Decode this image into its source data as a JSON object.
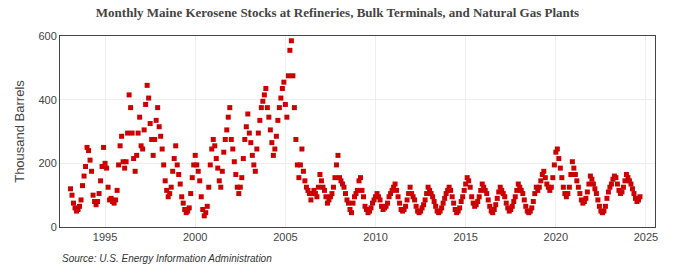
{
  "chart_data": {
    "type": "scatter",
    "title": "Monthly Maine Kerosene Stocks at Refineries, Bulk Terminals, and Natural Gas Plants",
    "ylabel": "Thousand Barrels",
    "annotations": [
      "Source: U.S. Energy Information Administration"
    ],
    "color": "#CC0000",
    "marker": "square",
    "grid": true,
    "xlim": [
      1992.5,
      2025.5
    ],
    "xticks": [
      1995,
      2000,
      2005,
      2010,
      2015,
      2020,
      2025
    ],
    "ylim": [
      0,
      600
    ],
    "yticks": [
      0,
      200,
      400,
      600
    ],
    "x": [
      1993.0833,
      1993.1667,
      1993.25,
      1993.3333,
      1993.4167,
      1993.5,
      1993.5833,
      1993.6667,
      1993.75,
      1993.8333,
      1993.9167,
      1993.9999,
      1994.0833,
      1994.1667,
      1994.25,
      1994.3333,
      1994.4167,
      1994.5,
      1994.5833,
      1994.6667,
      1994.75,
      1994.8333,
      1994.9167,
      1994.9999,
      1995.0833,
      1995.1667,
      1995.25,
      1995.3333,
      1995.4167,
      1995.5,
      1995.5833,
      1995.6667,
      1995.75,
      1995.8333,
      1995.9167,
      1995.9999,
      1996.0833,
      1996.1667,
      1996.25,
      1996.3333,
      1996.4167,
      1996.5,
      1996.5833,
      1996.6667,
      1996.75,
      1996.8333,
      1996.9167,
      1996.9999,
      1997.0833,
      1997.1667,
      1997.25,
      1997.3333,
      1997.4167,
      1997.5,
      1997.5833,
      1997.6667,
      1997.75,
      1997.8333,
      1997.9167,
      1997.9999,
      1998.0833,
      1998.1667,
      1998.25,
      1998.3333,
      1998.4167,
      1998.5,
      1998.5833,
      1998.6667,
      1998.75,
      1998.8333,
      1998.9167,
      1998.9999,
      1999.0833,
      1999.1667,
      1999.25,
      1999.3333,
      1999.4167,
      1999.5,
      1999.5833,
      1999.6667,
      1999.75,
      1999.8333,
      1999.9167,
      1999.9999,
      2000.0833,
      2000.1667,
      2000.25,
      2000.3333,
      2000.4167,
      2000.5,
      2000.5833,
      2000.6667,
      2000.75,
      2000.8333,
      2000.9167,
      2000.9999,
      2001.0833,
      2001.1667,
      2001.25,
      2001.3333,
      2001.4167,
      2001.5,
      2001.5833,
      2001.6667,
      2001.75,
      2001.8333,
      2001.9167,
      2001.9999,
      2002.0833,
      2002.1667,
      2002.25,
      2002.3333,
      2002.4167,
      2002.5,
      2002.5833,
      2002.6667,
      2002.75,
      2002.8333,
      2002.9167,
      2002.9999,
      2003.0833,
      2003.1667,
      2003.25,
      2003.3333,
      2003.4167,
      2003.5,
      2003.5833,
      2003.6667,
      2003.75,
      2003.8333,
      2003.9167,
      2003.9999,
      2004.0833,
      2004.1667,
      2004.25,
      2004.3333,
      2004.4167,
      2004.5,
      2004.5833,
      2004.6667,
      2004.75,
      2004.8333,
      2004.9167,
      2004.9999,
      2005.0833,
      2005.1667,
      2005.25,
      2005.3333,
      2005.4167,
      2005.5,
      2005.5833,
      2005.6667,
      2005.75,
      2005.8333,
      2005.9167,
      2005.9999,
      2006.0833,
      2006.1667,
      2006.25,
      2006.3333,
      2006.4167,
      2006.5,
      2006.5833,
      2006.6667,
      2006.75,
      2006.8333,
      2006.9167,
      2006.9999,
      2007.0833,
      2007.1667,
      2007.25,
      2007.3333,
      2007.4167,
      2007.5,
      2007.5833,
      2007.6667,
      2007.75,
      2007.8333,
      2007.9167,
      2007.9999,
      2008.0833,
      2008.1667,
      2008.25,
      2008.3333,
      2008.4167,
      2008.5,
      2008.5833,
      2008.6667,
      2008.75,
      2008.8333,
      2008.9167,
      2008.9999,
      2009.0833,
      2009.1667,
      2009.25,
      2009.3333,
      2009.4167,
      2009.5,
      2009.5833,
      2009.6667,
      2009.75,
      2009.8333,
      2009.9167,
      2009.9999,
      2010.0833,
      2010.1667,
      2010.25,
      2010.3333,
      2010.4167,
      2010.5,
      2010.5833,
      2010.6667,
      2010.75,
      2010.8333,
      2010.9167,
      2010.9999,
      2011.0833,
      2011.1667,
      2011.25,
      2011.3333,
      2011.4167,
      2011.5,
      2011.5833,
      2011.6667,
      2011.75,
      2011.8333,
      2011.9167,
      2011.9999,
      2012.0833,
      2012.1667,
      2012.25,
      2012.3333,
      2012.4167,
      2012.5,
      2012.5833,
      2012.6667,
      2012.75,
      2012.8333,
      2012.9167,
      2012.9999,
      2013.0833,
      2013.1667,
      2013.25,
      2013.3333,
      2013.4167,
      2013.5,
      2013.5833,
      2013.6667,
      2013.75,
      2013.8333,
      2013.9167,
      2013.9999,
      2014.0833,
      2014.1667,
      2014.25,
      2014.3333,
      2014.4167,
      2014.5,
      2014.5833,
      2014.6667,
      2014.75,
      2014.8333,
      2014.9167,
      2014.9999,
      2015.0833,
      2015.1667,
      2015.25,
      2015.3333,
      2015.4167,
      2015.5,
      2015.5833,
      2015.6667,
      2015.75,
      2015.8333,
      2015.9167,
      2015.9999,
      2016.0833,
      2016.1667,
      2016.25,
      2016.3333,
      2016.4167,
      2016.5,
      2016.5833,
      2016.6667,
      2016.75,
      2016.8333,
      2016.9167,
      2016.9999,
      2017.0833,
      2017.1667,
      2017.25,
      2017.3333,
      2017.4167,
      2017.5,
      2017.5833,
      2017.6667,
      2017.75,
      2017.8333,
      2017.9167,
      2017.9999,
      2018.0833,
      2018.1667,
      2018.25,
      2018.3333,
      2018.4167,
      2018.5,
      2018.5833,
      2018.6667,
      2018.75,
      2018.8333,
      2018.9167,
      2018.9999,
      2019.0833,
      2019.1667,
      2019.25,
      2019.3333,
      2019.4167,
      2019.5,
      2019.5833,
      2019.6667,
      2019.75,
      2019.8333,
      2019.9167,
      2019.9999,
      2020.0833,
      2020.1667,
      2020.25,
      2020.3333,
      2020.4167,
      2020.5,
      2020.5833,
      2020.6667,
      2020.75,
      2020.8333,
      2020.9167,
      2020.9999,
      2021.0833,
      2021.1667,
      2021.25,
      2021.3333,
      2021.4167,
      2021.5,
      2021.5833,
      2021.6667,
      2021.75,
      2021.8333,
      2021.9167,
      2021.9999,
      2022.0833,
      2022.1667,
      2022.25,
      2022.3333,
      2022.4167,
      2022.5,
      2022.5833,
      2022.6667,
      2022.75,
      2022.8333,
      2022.9167,
      2022.9999,
      2023.0833,
      2023.1667,
      2023.25,
      2023.3333,
      2023.4167,
      2023.5,
      2023.5833,
      2023.6667,
      2023.75,
      2023.8333,
      2023.9167,
      2023.9999,
      2024.0833,
      2024.1667,
      2024.25,
      2024.3333,
      2024.4167,
      2024.5,
      2024.5833,
      2024.6667
    ],
    "values": [
      120,
      100,
      75,
      60,
      50,
      55,
      65,
      85,
      130,
      160,
      190,
      250,
      240,
      210,
      175,
      100,
      80,
      70,
      80,
      105,
      145,
      190,
      250,
      200,
      185,
      125,
      85,
      90,
      80,
      75,
      85,
      115,
      195,
      255,
      285,
      205,
      185,
      205,
      295,
      415,
      375,
      295,
      215,
      175,
      225,
      295,
      345,
      255,
      245,
      305,
      385,
      445,
      405,
      325,
      275,
      225,
      275,
      335,
      375,
      315,
      285,
      245,
      195,
      145,
      115,
      95,
      105,
      125,
      175,
      215,
      255,
      195,
      165,
      135,
      95,
      75,
      55,
      45,
      50,
      60,
      105,
      155,
      195,
      225,
      195,
      175,
      145,
      95,
      55,
      35,
      45,
      65,
      125,
      195,
      245,
      275,
      255,
      215,
      185,
      145,
      125,
      175,
      235,
      275,
      305,
      345,
      375,
      275,
      245,
      205,
      165,
      125,
      105,
      125,
      155,
      215,
      275,
      315,
      355,
      295,
      265,
      225,
      195,
      175,
      245,
      295,
      335,
      375,
      395,
      415,
      435,
      375,
      345,
      305,
      265,
      225,
      245,
      285,
      335,
      375,
      405,
      435,
      455,
      385,
      345,
      475,
      555,
      585,
      475,
      375,
      275,
      195,
      155,
      195,
      245,
      175,
      145,
      125,
      115,
      105,
      85,
      105,
      115,
      105,
      95,
      125,
      165,
      145,
      125,
      115,
      95,
      75,
      85,
      95,
      105,
      125,
      155,
      195,
      225,
      155,
      145,
      135,
      125,
      105,
      85,
      75,
      55,
      45,
      75,
      95,
      105,
      115,
      145,
      155,
      115,
      95,
      65,
      55,
      45,
      50,
      60,
      75,
      85,
      95,
      105,
      95,
      85,
      65,
      55,
      60,
      65,
      75,
      95,
      105,
      115,
      125,
      135,
      115,
      95,
      75,
      55,
      50,
      55,
      65,
      85,
      105,
      125,
      105,
      95,
      85,
      65,
      50,
      45,
      50,
      60,
      70,
      85,
      105,
      125,
      115,
      105,
      95,
      80,
      65,
      50,
      45,
      50,
      60,
      75,
      90,
      105,
      115,
      125,
      115,
      95,
      75,
      55,
      45,
      50,
      60,
      80,
      95,
      115,
      135,
      155,
      145,
      125,
      95,
      75,
      65,
      70,
      80,
      95,
      115,
      135,
      125,
      115,
      105,
      85,
      65,
      50,
      45,
      55,
      70,
      90,
      110,
      125,
      115,
      105,
      95,
      75,
      60,
      50,
      55,
      65,
      80,
      95,
      115,
      135,
      125,
      115,
      105,
      85,
      65,
      50,
      45,
      50,
      60,
      80,
      105,
      125,
      115,
      125,
      145,
      165,
      175,
      155,
      135,
      125,
      115,
      125,
      155,
      195,
      235,
      245,
      215,
      185,
      155,
      125,
      105,
      95,
      105,
      125,
      165,
      205,
      185,
      165,
      145,
      125,
      105,
      85,
      75,
      80,
      90,
      110,
      135,
      160,
      150,
      135,
      120,
      105,
      85,
      65,
      50,
      45,
      50,
      65,
      90,
      110,
      125,
      135,
      150,
      160,
      155,
      135,
      115,
      105,
      110,
      125,
      145,
      165,
      155,
      145,
      135,
      120,
      105,
      90,
      80,
      85,
      95
    ]
  }
}
